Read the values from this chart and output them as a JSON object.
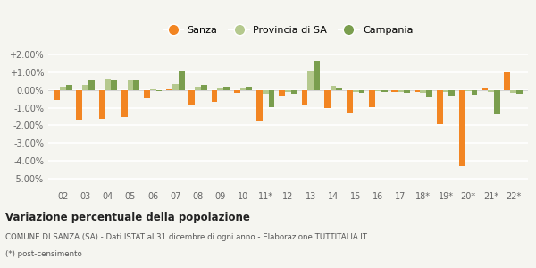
{
  "categories": [
    "02",
    "03",
    "04",
    "05",
    "06",
    "07",
    "08",
    "09",
    "10",
    "11*",
    "12",
    "13",
    "14",
    "15",
    "16",
    "17",
    "18*",
    "19*",
    "20*",
    "21*",
    "22*"
  ],
  "sanza": [
    -0.0055,
    -0.017,
    -0.0165,
    -0.0155,
    -0.0045,
    0.0005,
    -0.0085,
    -0.0065,
    -0.0015,
    -0.0175,
    -0.0035,
    -0.0085,
    -0.01,
    -0.013,
    -0.0095,
    -0.001,
    -0.001,
    -0.0195,
    -0.043,
    0.0015,
    0.01
  ],
  "provincia": [
    0.002,
    0.003,
    0.0065,
    0.006,
    0.0005,
    0.0035,
    0.002,
    0.0015,
    0.0015,
    -0.002,
    -0.001,
    0.011,
    0.0025,
    -0.001,
    -0.0005,
    -0.001,
    -0.0015,
    -0.001,
    -0.0005,
    -0.001,
    -0.0015
  ],
  "campania": [
    0.003,
    0.0055,
    0.006,
    0.0055,
    -0.0005,
    0.011,
    0.003,
    0.002,
    0.002,
    -0.0095,
    -0.002,
    0.0165,
    0.0015,
    -0.0015,
    -0.001,
    -0.0015,
    -0.004,
    -0.0035,
    -0.0025,
    -0.0135,
    -0.002
  ],
  "sanza_color": "#f28522",
  "provincia_color": "#b5c98e",
  "campania_color": "#7a9e4e",
  "bg_color": "#f5f5f0",
  "grid_color": "#ffffff",
  "ylim": [
    -0.055,
    0.025
  ],
  "yticks": [
    -0.05,
    -0.04,
    -0.03,
    -0.02,
    -0.01,
    0.0,
    0.01,
    0.02
  ],
  "ytick_labels": [
    "-5.00%",
    "-4.00%",
    "-3.00%",
    "-2.00%",
    "-1.00%",
    "0.00%",
    "+1.00%",
    "+2.00%"
  ],
  "title": "Variazione percentuale della popolazione",
  "subtitle": "COMUNE DI SANZA (SA) - Dati ISTAT al 31 dicembre di ogni anno - Elaborazione TUTTITALIA.IT",
  "footnote": "(*) post-censimento",
  "legend_labels": [
    "Sanza",
    "Provincia di SA",
    "Campania"
  ]
}
